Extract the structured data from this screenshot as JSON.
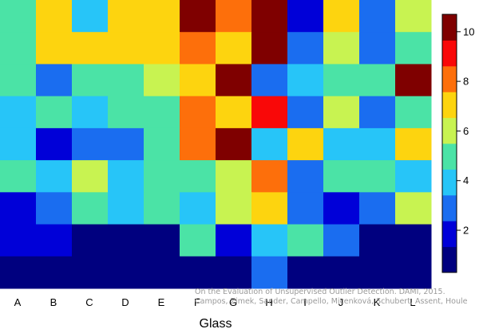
{
  "chart_data": {
    "type": "heatmap",
    "xlabel": "Glass",
    "ylabel": "",
    "categories": [
      "A",
      "B",
      "C",
      "D",
      "E",
      "F",
      "G",
      "H",
      "I",
      "J",
      "K",
      "L"
    ],
    "values": [
      [
        4.5,
        7,
        4,
        7,
        7,
        10.5,
        8,
        10.5,
        1.5,
        7,
        3,
        5.5
      ],
      [
        4.5,
        7,
        7,
        7,
        7,
        8,
        7,
        10.5,
        3,
        5.5,
        3,
        4.5
      ],
      [
        4.5,
        3,
        4.5,
        4.5,
        5.5,
        7,
        10.5,
        3,
        4,
        4.5,
        4.5,
        10.5
      ],
      [
        4,
        4.5,
        4,
        4.5,
        4.5,
        8,
        7,
        9,
        3,
        5.5,
        3,
        4.5
      ],
      [
        4,
        1.5,
        3,
        3,
        4.5,
        8,
        10.5,
        4,
        7,
        4,
        4,
        7
      ],
      [
        4.5,
        4,
        5.5,
        4,
        4.5,
        4.5,
        5.5,
        8,
        3,
        4.5,
        4.5,
        4
      ],
      [
        1.5,
        3,
        4.5,
        4,
        4.5,
        4,
        5.5,
        7,
        3,
        1.5,
        3,
        5.5
      ],
      [
        1.5,
        1.5,
        0.5,
        0.5,
        0.5,
        4.5,
        1.5,
        4,
        4.5,
        3,
        0.5,
        0.5
      ],
      [
        0.5,
        0.5,
        0.5,
        0.5,
        0.5,
        0.5,
        0.5,
        3,
        0.5,
        0.5,
        0.5,
        0.5
      ]
    ],
    "zlim": [
      0.3,
      10.7
    ],
    "colorbar_ticks": [
      "2",
      "4",
      "6",
      "8",
      "10"
    ],
    "colorbar_tick_values": [
      2,
      4,
      6,
      8,
      10
    ],
    "colormap": [
      "#00007f",
      "#0000d8",
      "#1a6df0",
      "#27c5f8",
      "#4be3a6",
      "#c8f351",
      "#fdd40f",
      "#fd6f0b",
      "#f90808",
      "#7f0000"
    ],
    "grid": false,
    "legend": "colorbar right"
  },
  "credit": {
    "line1": "On the Evaluation of Unsupervised Outlier Detection. DAMI, 2015.",
    "line2": "Campos, Zimek, Sander, Campello, Micenková, Schubert, Assent, Houle"
  }
}
